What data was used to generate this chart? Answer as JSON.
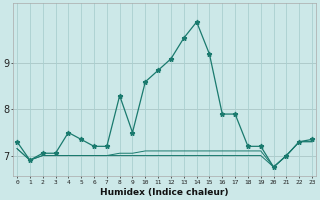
{
  "xlabel": "Humidex (Indice chaleur)",
  "bg_color": "#cce8e8",
  "grid_color": "#aacfcf",
  "line_color": "#1a7a6e",
  "x_values": [
    0,
    1,
    2,
    3,
    4,
    5,
    6,
    7,
    8,
    9,
    10,
    11,
    12,
    13,
    14,
    15,
    16,
    17,
    18,
    19,
    20,
    21,
    22,
    23
  ],
  "line_main": [
    7.3,
    6.9,
    7.05,
    7.05,
    7.5,
    7.35,
    7.2,
    7.2,
    8.3,
    7.5,
    8.6,
    8.85,
    9.1,
    9.55,
    9.9,
    9.2,
    7.9,
    7.9,
    7.2,
    7.2,
    6.75,
    7.0,
    7.3,
    7.35
  ],
  "line_flat1": [
    7.15,
    6.9,
    7.0,
    7.0,
    7.0,
    7.0,
    7.0,
    7.0,
    7.0,
    7.0,
    7.0,
    7.0,
    7.0,
    7.0,
    7.0,
    7.0,
    7.0,
    7.0,
    7.0,
    7.0,
    6.75,
    7.0,
    7.3,
    7.3
  ],
  "line_flat2": [
    7.15,
    6.9,
    7.0,
    7.0,
    7.0,
    7.0,
    7.0,
    7.0,
    7.05,
    7.05,
    7.1,
    7.1,
    7.1,
    7.1,
    7.1,
    7.1,
    7.1,
    7.1,
    7.1,
    7.1,
    6.75,
    7.0,
    7.3,
    7.3
  ],
  "ylim": [
    6.55,
    10.3
  ],
  "yticks": [
    7,
    8,
    9
  ],
  "xticks": [
    0,
    1,
    2,
    3,
    4,
    5,
    6,
    7,
    8,
    9,
    10,
    11,
    12,
    13,
    14,
    15,
    16,
    17,
    18,
    19,
    20,
    21,
    22,
    23
  ],
  "xlim": [
    -0.3,
    23.3
  ]
}
